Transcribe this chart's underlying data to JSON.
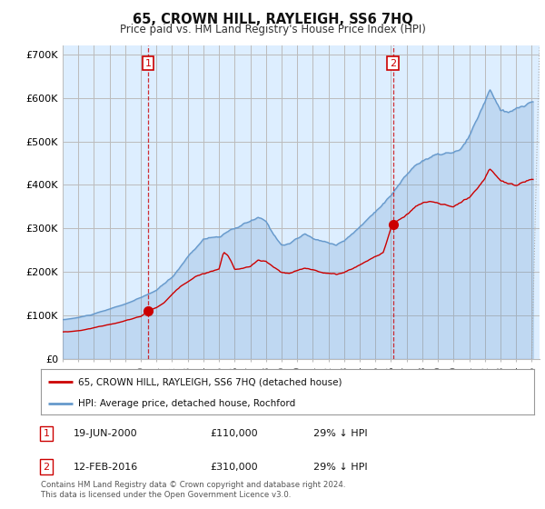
{
  "title": "65, CROWN HILL, RAYLEIGH, SS6 7HQ",
  "subtitle": "Price paid vs. HM Land Registry's House Price Index (HPI)",
  "ylim": [
    0,
    720000
  ],
  "yticks": [
    0,
    100000,
    200000,
    300000,
    400000,
    500000,
    600000,
    700000
  ],
  "ytick_labels": [
    "£0",
    "£100K",
    "£200K",
    "£300K",
    "£400K",
    "£500K",
    "£600K",
    "£700K"
  ],
  "xlim_start": 1995.0,
  "xlim_end": 2025.5,
  "bg_color": "#ddeeff",
  "grid_color": "#bbbbbb",
  "marker1_x": 2000.47,
  "marker1_y": 110000,
  "marker2_x": 2016.12,
  "marker2_y": 310000,
  "vline1_x": 2000.47,
  "vline2_x": 2016.12,
  "house_color": "#cc0000",
  "hpi_color": "#6699cc",
  "legend_house": "65, CROWN HILL, RAYLEIGH, SS6 7HQ (detached house)",
  "legend_hpi": "HPI: Average price, detached house, Rochford",
  "marker1_date": "19-JUN-2000",
  "marker1_price": "£110,000",
  "marker1_hpi": "29% ↓ HPI",
  "marker2_date": "12-FEB-2016",
  "marker2_price": "£310,000",
  "marker2_hpi": "29% ↓ HPI",
  "footnote": "Contains HM Land Registry data © Crown copyright and database right 2024.\nThis data is licensed under the Open Government Licence v3.0."
}
